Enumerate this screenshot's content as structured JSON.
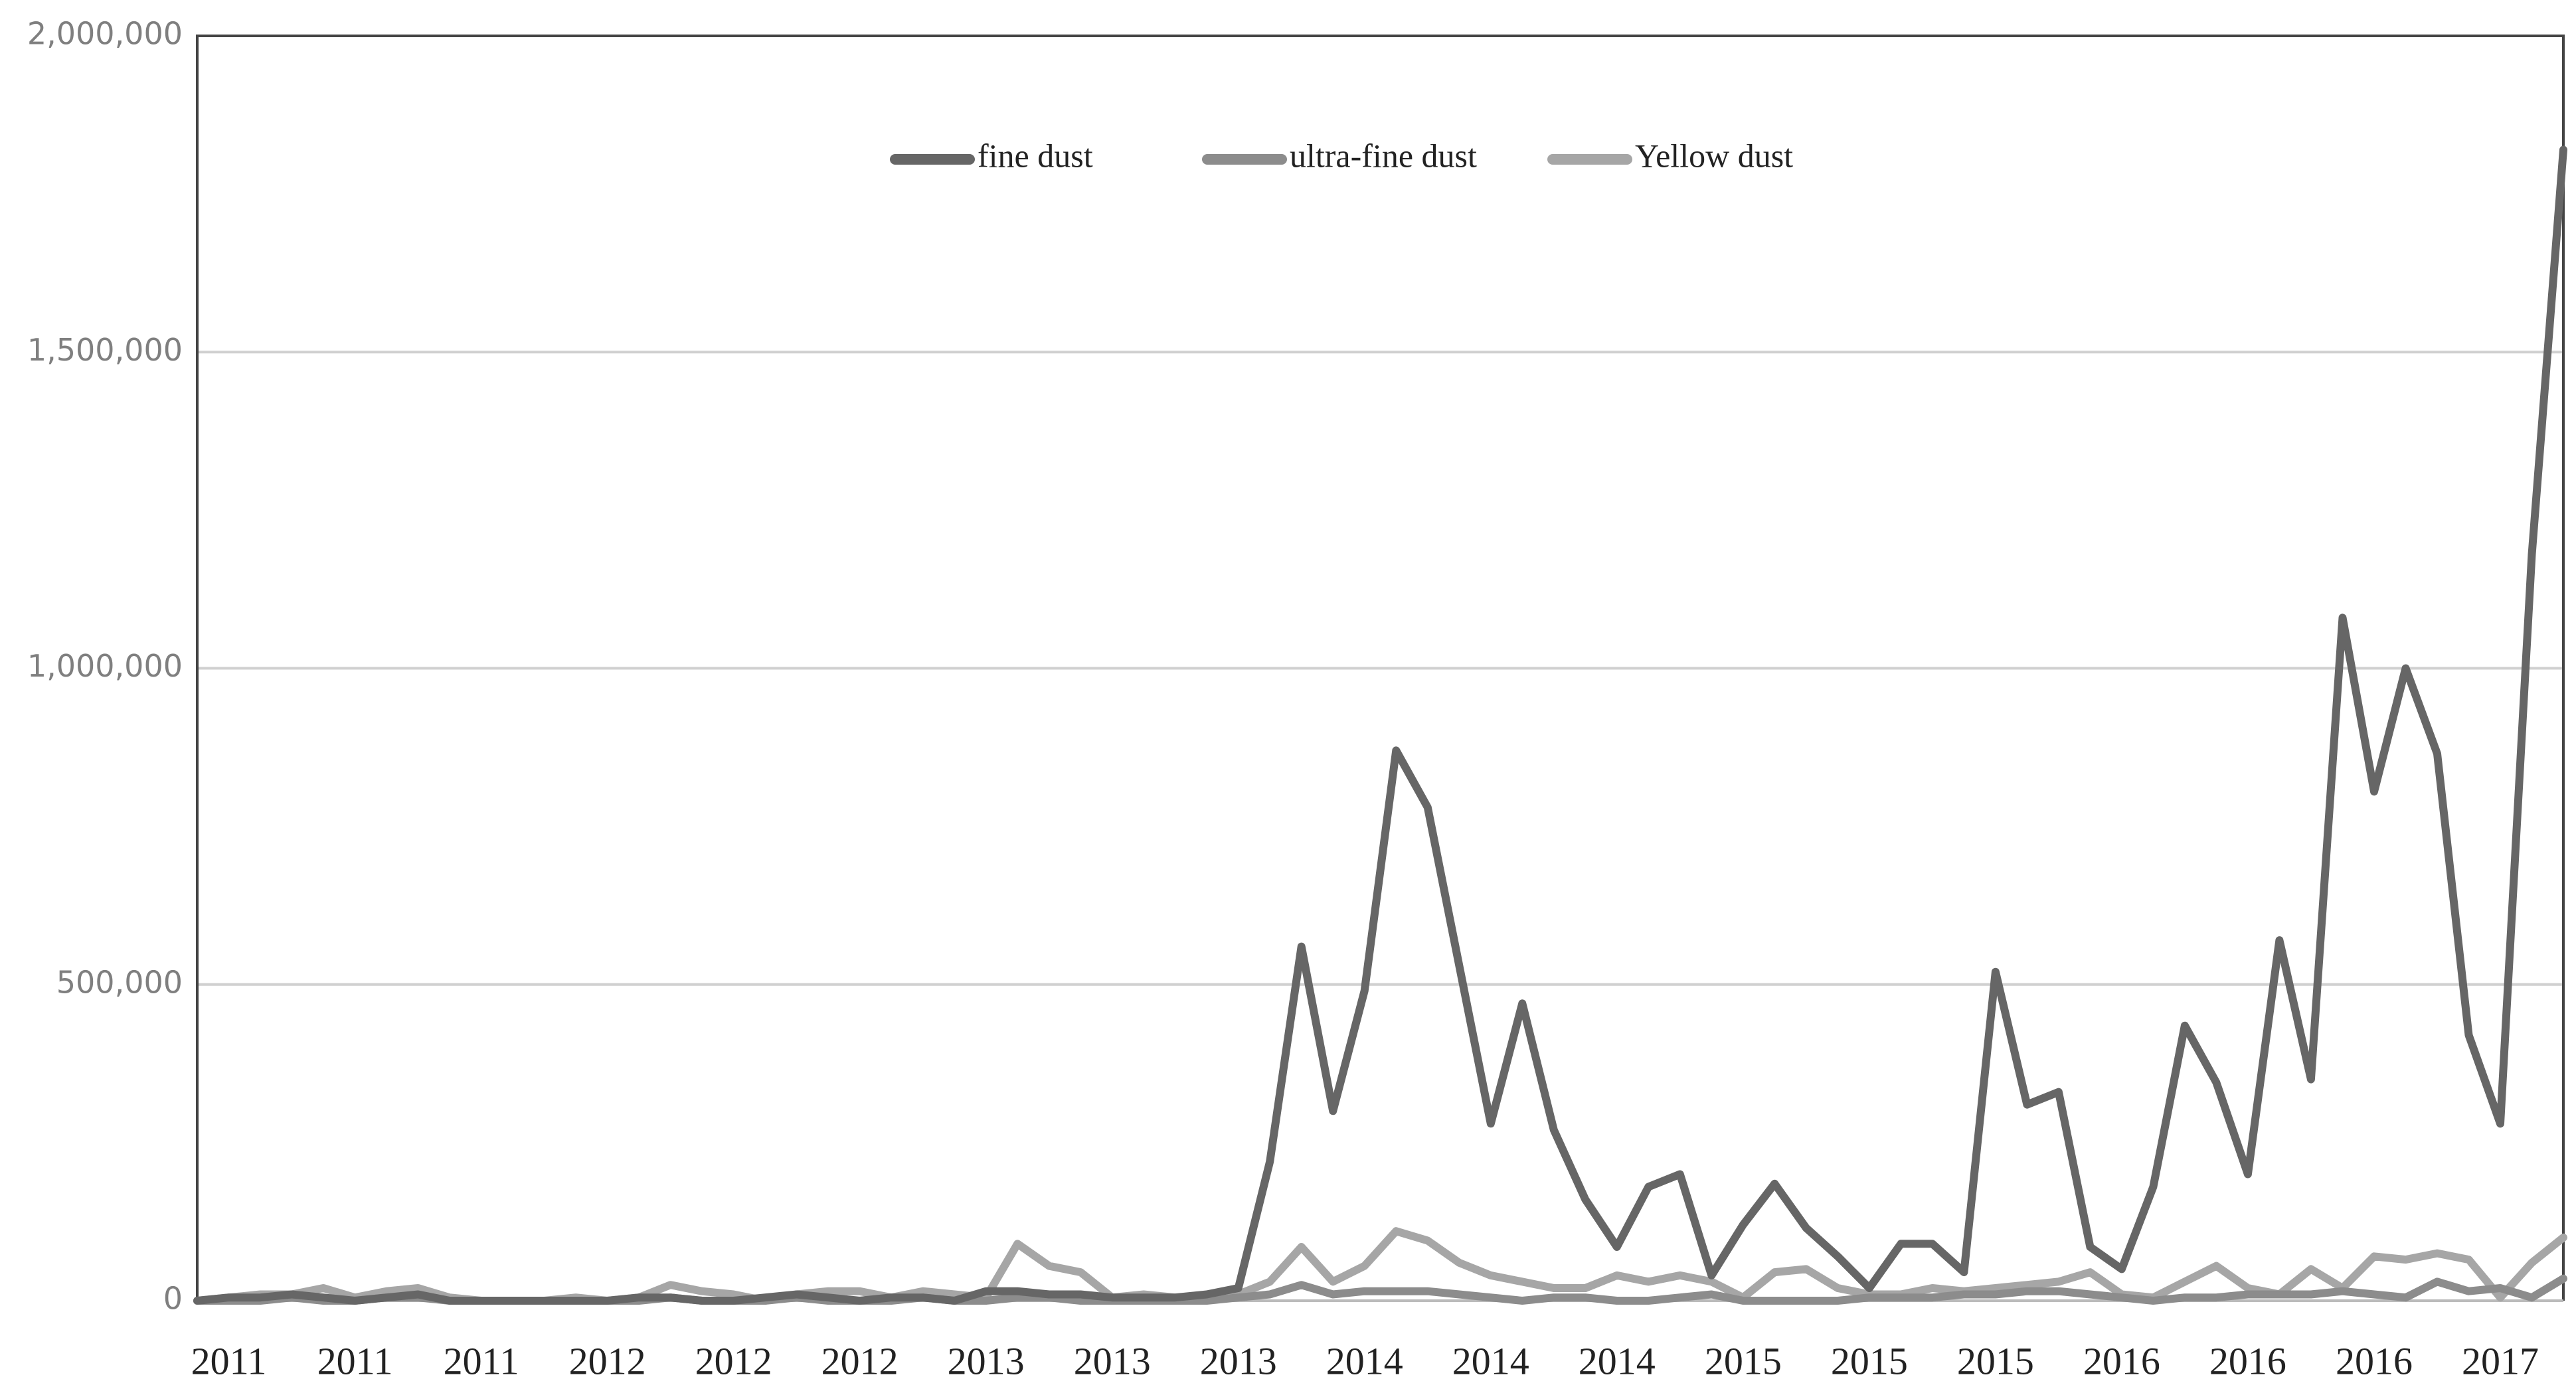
{
  "chart_data": {
    "type": "line",
    "categories": [
      null,
      "2011",
      null,
      null,
      null,
      "2011",
      null,
      null,
      null,
      "2011",
      null,
      null,
      null,
      "2012",
      null,
      null,
      null,
      "2012",
      null,
      null,
      null,
      "2012",
      null,
      null,
      null,
      "2013",
      null,
      null,
      null,
      "2013",
      null,
      null,
      null,
      "2013",
      null,
      null,
      null,
      "2014",
      null,
      null,
      null,
      "2014",
      null,
      null,
      null,
      "2014",
      null,
      null,
      null,
      "2015",
      null,
      null,
      null,
      "2015",
      null,
      null,
      null,
      "2015",
      null,
      null,
      null,
      "2016",
      null,
      null,
      null,
      "2016",
      null,
      null,
      null,
      "2016",
      null,
      null,
      null,
      "2017",
      null,
      null
    ],
    "series": [
      {
        "name": "fine dust",
        "color": "#666666",
        "values": [
          0,
          5000,
          5000,
          10000,
          5000,
          0,
          5000,
          10000,
          0,
          0,
          0,
          0,
          0,
          0,
          5000,
          5000,
          0,
          0,
          5000,
          10000,
          5000,
          0,
          5000,
          5000,
          0,
          15000,
          15000,
          10000,
          10000,
          5000,
          5000,
          5000,
          10000,
          20000,
          220000,
          560000,
          300000,
          490000,
          870000,
          780000,
          530000,
          280000,
          470000,
          270000,
          160000,
          85000,
          180000,
          200000,
          40000,
          120000,
          185000,
          115000,
          70000,
          20000,
          90000,
          90000,
          45000,
          520000,
          310000,
          330000,
          85000,
          50000,
          180000,
          435000,
          345000,
          200000,
          570000,
          350000,
          1080000,
          805000,
          1000000,
          865000,
          420000,
          280000,
          1180000,
          1820000
        ]
      },
      {
        "name": "ultra-fine dust",
        "color": "#8c8c8c",
        "values": [
          0,
          0,
          0,
          5000,
          0,
          0,
          5000,
          5000,
          0,
          0,
          0,
          0,
          0,
          0,
          0,
          5000,
          0,
          0,
          0,
          5000,
          0,
          0,
          0,
          5000,
          0,
          0,
          5000,
          5000,
          0,
          0,
          0,
          0,
          0,
          5000,
          10000,
          25000,
          10000,
          15000,
          15000,
          15000,
          10000,
          5000,
          0,
          5000,
          5000,
          0,
          0,
          5000,
          10000,
          0,
          0,
          0,
          0,
          5000,
          5000,
          5000,
          10000,
          10000,
          15000,
          15000,
          10000,
          5000,
          0,
          5000,
          5000,
          10000,
          10000,
          10000,
          15000,
          10000,
          5000,
          30000,
          15000,
          20000,
          5000,
          35000
        ]
      },
      {
        "name": "Yellow dust",
        "color": "#a6a6a6",
        "values": [
          0,
          5000,
          10000,
          10000,
          20000,
          5000,
          15000,
          20000,
          5000,
          0,
          0,
          0,
          5000,
          0,
          5000,
          25000,
          15000,
          10000,
          0,
          10000,
          15000,
          15000,
          5000,
          15000,
          10000,
          5000,
          90000,
          55000,
          45000,
          5000,
          10000,
          5000,
          5000,
          10000,
          30000,
          85000,
          30000,
          55000,
          110000,
          95000,
          60000,
          40000,
          30000,
          20000,
          20000,
          40000,
          30000,
          40000,
          30000,
          5000,
          45000,
          50000,
          20000,
          10000,
          10000,
          20000,
          15000,
          20000,
          25000,
          30000,
          45000,
          10000,
          5000,
          30000,
          55000,
          20000,
          10000,
          50000,
          20000,
          70000,
          65000,
          75000,
          65000,
          5000,
          60000,
          100000
        ]
      }
    ],
    "ylim": [
      0,
      2000000
    ],
    "yticks": [
      0,
      {
        "value": 500000,
        "label": "500,000"
      },
      {
        "value": 1000000,
        "label": "1,000,000"
      },
      {
        "value": 1500000,
        "label": "1,500,000"
      },
      {
        "value": 2000000,
        "label": "2,000,000"
      }
    ],
    "grid": true
  }
}
